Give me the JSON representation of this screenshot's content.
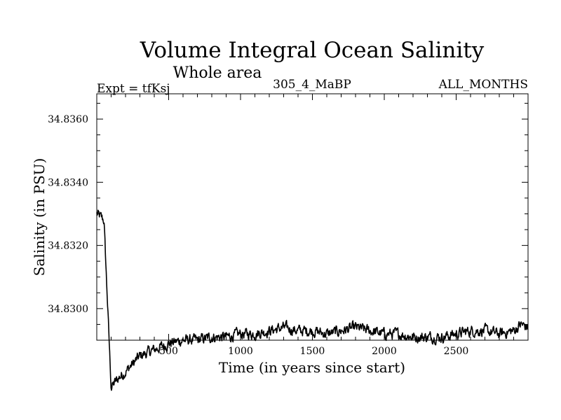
{
  "chart_data": {
    "type": "line",
    "title": "Volume Integral Ocean Salinity",
    "subtitle": "Whole area",
    "expt_label": "Expt = tfKsj",
    "run_label": "305_4_MaBP",
    "period_label": "ALL_MONTHS",
    "xlabel": "Time (in years since start)",
    "ylabel": "Salinity (in PSU)",
    "xlim": [
      0,
      3000
    ],
    "ylim": [
      34.829,
      34.8368
    ],
    "x_ticks": [
      500,
      1000,
      1500,
      2000,
      2500
    ],
    "x_tick_labels": [
      "500",
      "1000",
      "1500",
      "2000",
      "2500"
    ],
    "y_ticks": [
      34.83,
      34.832,
      34.834,
      34.836
    ],
    "y_tick_labels": [
      "34.8300",
      "34.8320",
      "34.8340",
      "34.8360"
    ],
    "series": [
      {
        "name": "salinity",
        "color": "#000000",
        "x": [
          0,
          50,
          100,
          150,
          200,
          300,
          400,
          500,
          600,
          700,
          800,
          900,
          1000,
          1100,
          1200,
          1300,
          1400,
          1500,
          1600,
          1700,
          1800,
          1900,
          2000,
          2100,
          2200,
          2300,
          2400,
          2500,
          2600,
          2700,
          2800,
          2900,
          2950,
          3000
        ],
        "values": [
          34.833,
          34.8328,
          34.8275,
          34.8278,
          34.828,
          34.8285,
          34.8287,
          34.8289,
          34.829,
          34.829,
          34.8291,
          34.8291,
          34.8292,
          34.8292,
          34.8293,
          34.8294,
          34.8293,
          34.8293,
          34.8292,
          34.8293,
          34.8294,
          34.8293,
          34.8292,
          34.8292,
          34.8291,
          34.8291,
          34.8291,
          34.8292,
          34.8293,
          34.8293,
          34.8292,
          34.8293,
          34.8295,
          34.8294
        ]
      }
    ]
  }
}
